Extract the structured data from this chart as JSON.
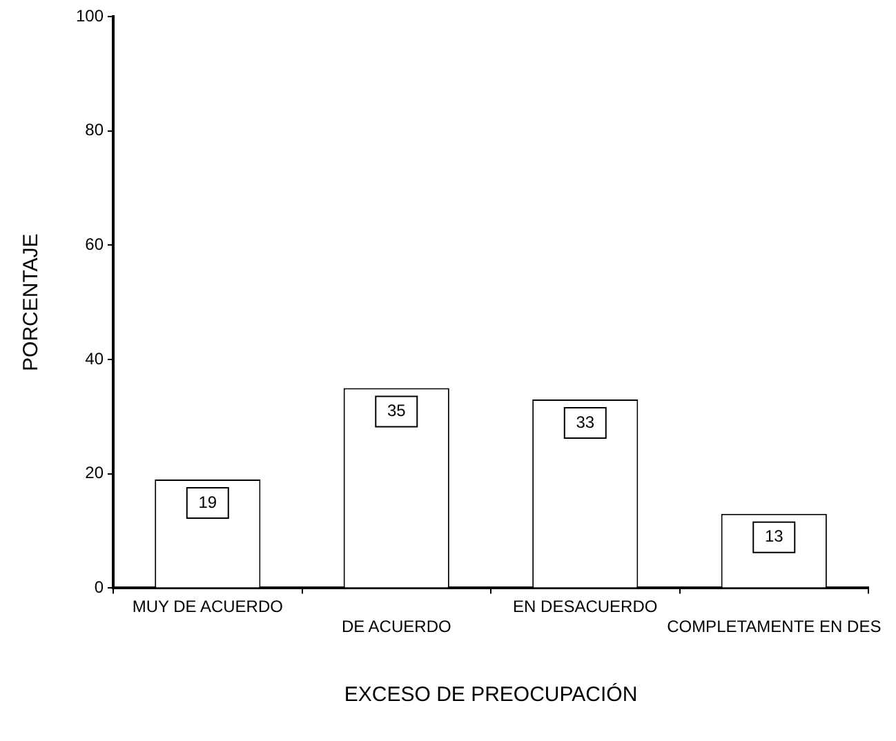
{
  "chart_data": {
    "type": "bar",
    "xlabel": "EXCESO DE PREOCUPACIÓN",
    "ylabel": "PORCENTAJE",
    "categories": [
      "MUY DE ACUERDO",
      "DE ACUERDO",
      "EN DESACUERDO",
      "COMPLETAMENTE EN DES"
    ],
    "values": [
      19,
      35,
      33,
      13
    ],
    "color": "#ffffff",
    "ylim": [
      0,
      100
    ],
    "yticks": [
      0,
      20,
      40,
      60,
      80,
      100
    ],
    "grid": false,
    "legend": false,
    "data_labels": true
  }
}
